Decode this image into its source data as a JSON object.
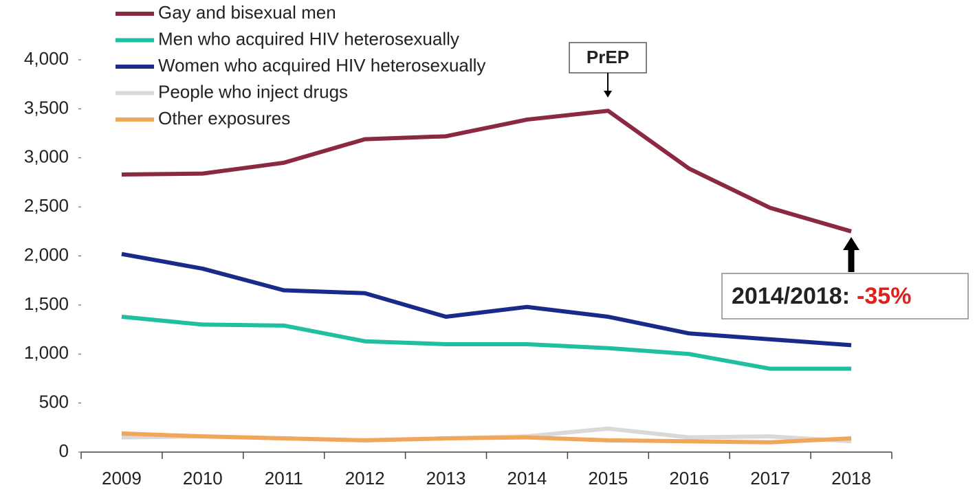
{
  "chart_data": {
    "type": "line",
    "categories": [
      "2009",
      "2010",
      "2011",
      "2012",
      "2013",
      "2014",
      "2015",
      "2016",
      "2017",
      "2018"
    ],
    "series": [
      {
        "name": "Gay and bisexual men",
        "color": "#8b2942",
        "values": [
          2830,
          2840,
          2950,
          3190,
          3220,
          3390,
          3480,
          2890,
          2490,
          2250
        ]
      },
      {
        "name": "Men who acquired HIV heterosexually",
        "color": "#1fbf9f",
        "values": [
          1380,
          1300,
          1290,
          1130,
          1100,
          1100,
          1060,
          1000,
          850,
          850
        ]
      },
      {
        "name": "Women who acquired HIV heterosexually",
        "color": "#1a2a8a",
        "values": [
          2020,
          1870,
          1650,
          1620,
          1380,
          1480,
          1380,
          1210,
          1150,
          1090
        ]
      },
      {
        "name": "People who inject drugs",
        "color": "#d9d9d9",
        "values": [
          150,
          160,
          140,
          120,
          140,
          160,
          240,
          150,
          160,
          110
        ]
      },
      {
        "name": "Other exposures",
        "color": "#f2a65a",
        "values": [
          190,
          160,
          140,
          120,
          140,
          150,
          120,
          110,
          100,
          140
        ]
      }
    ],
    "ylim": [
      0,
      4000
    ],
    "yticks": [
      0,
      500,
      {
        "value": 1000,
        "label": "1,000"
      },
      {
        "value": 1500,
        "label": "1,500"
      },
      {
        "value": 2000,
        "label": "2,000"
      },
      {
        "value": 2500,
        "label": "2,500"
      },
      {
        "value": 3000,
        "label": "3,000"
      },
      {
        "value": 3500,
        "label": "3,500"
      },
      {
        "value": 4000,
        "label": "4,000"
      }
    ],
    "annotations": {
      "prep": "PrEP",
      "change_label": "2014/2018:",
      "change_value": "-35%"
    },
    "legend": "upper left"
  }
}
